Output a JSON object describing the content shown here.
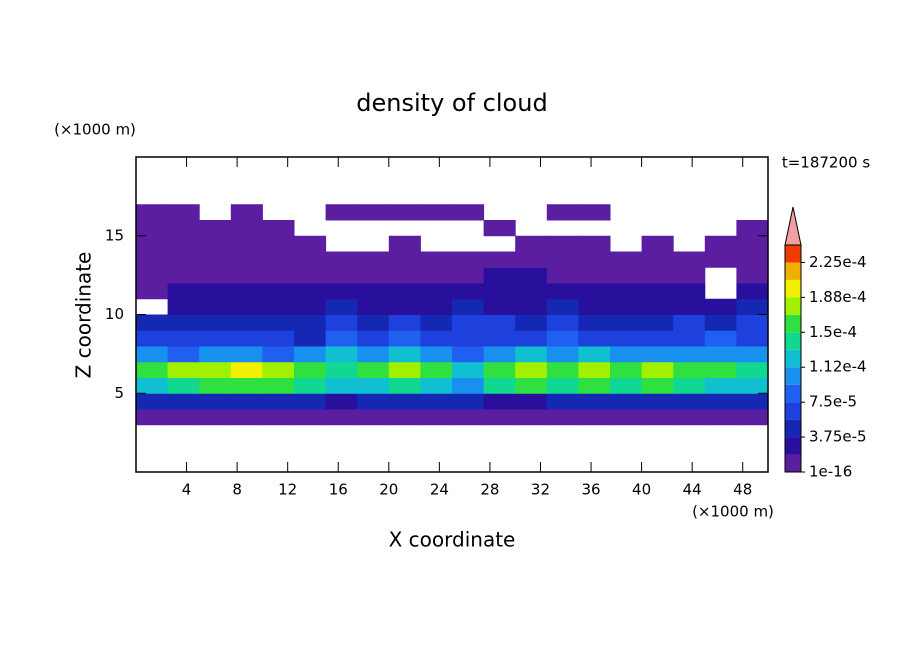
{
  "chart_data": {
    "type": "contour",
    "title": "density of cloud",
    "xlabel": "X coordinate",
    "ylabel": "Z coordinate",
    "xunit": "(×1000 m)",
    "yunit": "(×1000 m)",
    "time_label": "t=187200 s",
    "xlim": [
      0,
      50
    ],
    "ylim": [
      0,
      20
    ],
    "xticks": [
      4,
      8,
      12,
      16,
      20,
      24,
      28,
      32,
      36,
      40,
      44,
      48
    ],
    "yticks": [
      5,
      10,
      15
    ],
    "x": [
      1.25,
      3.75,
      6.25,
      8.75,
      11.25,
      13.75,
      16.25,
      18.75,
      21.25,
      23.75,
      26.25,
      28.75,
      31.25,
      33.75,
      36.25,
      38.75,
      41.25,
      43.75,
      46.25,
      48.75
    ],
    "y": [
      0.5,
      1.5,
      2.5,
      3.5,
      4.5,
      5.5,
      6.5,
      7.5,
      8.5,
      9.5,
      10.5,
      11.5,
      12.5,
      13.5,
      14.5,
      15.5,
      16.5,
      17.5,
      18.5,
      19.5
    ],
    "z": [
      [
        null,
        null,
        null,
        null,
        null,
        null,
        null,
        null,
        null,
        null,
        null,
        null,
        null,
        null,
        null,
        null,
        null,
        null,
        null,
        null
      ],
      [
        null,
        null,
        null,
        null,
        null,
        null,
        null,
        null,
        null,
        null,
        null,
        null,
        null,
        null,
        null,
        null,
        null,
        null,
        null,
        null
      ],
      [
        null,
        null,
        null,
        null,
        null,
        null,
        null,
        null,
        null,
        null,
        null,
        null,
        null,
        null,
        null,
        null,
        null,
        null,
        null,
        null
      ],
      [
        1e-05,
        1e-05,
        1e-05,
        1e-05,
        1e-05,
        1e-05,
        1e-05,
        1e-05,
        1e-05,
        1e-05,
        1e-05,
        1e-05,
        1e-05,
        1e-05,
        1e-05,
        1e-05,
        1e-05,
        1e-05,
        1e-05,
        1e-05
      ],
      [
        4e-05,
        5e-05,
        4e-05,
        4e-05,
        5e-05,
        4e-05,
        3e-05,
        4e-05,
        5e-05,
        4e-05,
        4e-05,
        3e-05,
        3e-05,
        5e-05,
        4e-05,
        5e-05,
        4e-05,
        4e-05,
        5e-05,
        4e-05
      ],
      [
        0.00013,
        0.00014,
        0.00015,
        0.00016,
        0.00015,
        0.00014,
        0.00012,
        0.00013,
        0.00014,
        0.00013,
        0.00011,
        0.00014,
        0.00015,
        0.00014,
        0.00015,
        0.00014,
        0.00015,
        0.00014,
        0.00013,
        0.00012
      ],
      [
        0.00016,
        0.00017,
        0.00018,
        0.00019,
        0.00018,
        0.00016,
        0.00014,
        0.00016,
        0.00017,
        0.00015,
        0.00013,
        0.00016,
        0.00017,
        0.00016,
        0.00017,
        0.00016,
        0.00017,
        0.00016,
        0.00015,
        0.00014
      ],
      [
        0.0001,
        9e-05,
        0.00011,
        0.0001,
        9e-05,
        0.00011,
        0.00012,
        0.00011,
        0.00012,
        0.00011,
        9e-05,
        0.00011,
        0.00012,
        0.00011,
        0.00012,
        0.00011,
        0.00011,
        0.0001,
        0.00011,
        0.0001
      ],
      [
        7e-05,
        6e-05,
        6e-05,
        7e-05,
        6e-05,
        5e-05,
        8e-05,
        7e-05,
        8e-05,
        7e-05,
        6e-05,
        7e-05,
        7e-05,
        8e-05,
        7e-05,
        7e-05,
        6e-05,
        7e-05,
        8e-05,
        7e-05
      ],
      [
        5e-05,
        5e-05,
        4e-05,
        5e-05,
        4e-05,
        5e-05,
        6e-05,
        5e-05,
        6e-05,
        5e-05,
        6e-05,
        6e-05,
        5e-05,
        6e-05,
        5e-05,
        5e-05,
        5e-05,
        6e-05,
        5e-05,
        6e-05
      ],
      [
        null,
        3e-05,
        3e-05,
        2.5e-05,
        3e-05,
        3e-05,
        4e-05,
        3e-05,
        3e-05,
        3e-05,
        4e-05,
        3e-05,
        3e-05,
        4e-05,
        3e-05,
        3e-05,
        3e-05,
        3e-05,
        3e-05,
        4e-05
      ],
      [
        1e-05,
        2e-05,
        2e-05,
        2e-05,
        2e-05,
        2e-05,
        2e-05,
        2e-05,
        2.5e-05,
        2e-05,
        2.5e-05,
        3e-05,
        2.5e-05,
        2e-05,
        2e-05,
        2.5e-05,
        2e-05,
        2e-05,
        null,
        2e-05
      ],
      [
        1e-05,
        1e-05,
        1e-05,
        1e-05,
        1e-05,
        1e-05,
        1e-05,
        1e-05,
        1e-05,
        1e-05,
        1e-05,
        2e-05,
        2e-05,
        1e-05,
        1e-05,
        1e-05,
        1e-05,
        1e-05,
        null,
        1e-05
      ],
      [
        1e-05,
        1e-05,
        1e-05,
        1e-05,
        1e-05,
        1e-05,
        1e-05,
        1e-05,
        1e-05,
        1e-05,
        1e-05,
        1e-05,
        1e-05,
        1e-05,
        1e-05,
        1e-05,
        1e-05,
        1e-05,
        1e-05,
        1e-05
      ],
      [
        1e-05,
        1e-05,
        1e-05,
        1e-05,
        1e-05,
        1e-05,
        null,
        null,
        1e-05,
        null,
        null,
        null,
        1e-05,
        1e-05,
        1e-05,
        null,
        1e-05,
        null,
        1e-05,
        1e-05
      ],
      [
        1e-05,
        1e-05,
        1e-05,
        1e-05,
        1e-05,
        null,
        null,
        null,
        null,
        null,
        null,
        1e-05,
        null,
        null,
        null,
        null,
        null,
        null,
        null,
        1e-05
      ],
      [
        1e-05,
        1e-05,
        null,
        1e-05,
        null,
        null,
        1e-05,
        1e-05,
        1e-05,
        1e-05,
        1e-05,
        null,
        null,
        1e-05,
        1e-05,
        null,
        null,
        null,
        null,
        null
      ],
      [
        null,
        null,
        null,
        null,
        null,
        null,
        null,
        null,
        null,
        null,
        null,
        null,
        null,
        null,
        null,
        null,
        null,
        null,
        null,
        null
      ],
      [
        null,
        null,
        null,
        null,
        null,
        null,
        null,
        null,
        null,
        null,
        null,
        null,
        null,
        null,
        null,
        null,
        null,
        null,
        null,
        null
      ],
      [
        null,
        null,
        null,
        null,
        null,
        null,
        null,
        null,
        null,
        null,
        null,
        null,
        null,
        null,
        null,
        null,
        null,
        null,
        null,
        null
      ]
    ],
    "levels": [
      1e-16,
      1.875e-05,
      3.75e-05,
      5.625e-05,
      7.5e-05,
      9.375e-05,
      0.0001125,
      0.00013125,
      0.00015,
      0.00016875,
      0.0001875,
      0.00020625,
      0.000225
    ],
    "colors": [
      "#5b1ea0",
      "#28109c",
      "#1428b4",
      "#1e40dc",
      "#2060f0",
      "#1890f0",
      "#10c0d0",
      "#10d890",
      "#30e040",
      "#a0f000",
      "#f0f000",
      "#f0b000",
      "#f03c00"
    ],
    "clim": [
      1e-16,
      0.00024375
    ],
    "extend_color": "#f0a0a0",
    "colorbar_ticks": [
      {
        "value": 1e-16,
        "label": "1e-16"
      },
      {
        "value": 3.75e-05,
        "label": "3.75e-5"
      },
      {
        "value": 7.5e-05,
        "label": "7.5e-5"
      },
      {
        "value": 0.0001125,
        "label": "1.12e-4"
      },
      {
        "value": 0.00015,
        "label": "1.5e-4"
      },
      {
        "value": 0.0001875,
        "label": "1.88e-4"
      },
      {
        "value": 0.000225,
        "label": "2.25e-4"
      }
    ]
  }
}
